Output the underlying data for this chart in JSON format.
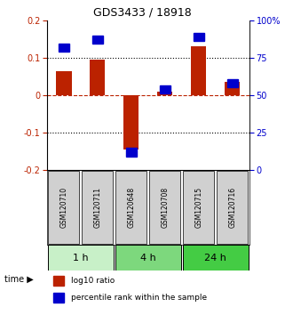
{
  "title": "GDS3433 / 18918",
  "samples": [
    "GSM120710",
    "GSM120711",
    "GSM120648",
    "GSM120708",
    "GSM120715",
    "GSM120716"
  ],
  "log10_ratio": [
    0.065,
    0.095,
    -0.145,
    0.01,
    0.13,
    0.035
  ],
  "percentile_rank": [
    82,
    87,
    12,
    54,
    89,
    58
  ],
  "time_groups": [
    {
      "label": "1 h",
      "start": 0,
      "end": 2,
      "color": "#c8f0c8"
    },
    {
      "label": "4 h",
      "start": 2,
      "end": 4,
      "color": "#7dd87d"
    },
    {
      "label": "24 h",
      "start": 4,
      "end": 6,
      "color": "#44cc44"
    }
  ],
  "red_color": "#bb2200",
  "blue_color": "#0000cc",
  "bar_width": 0.45,
  "blue_marker_size": 0.022,
  "ylim_left": [
    -0.2,
    0.2
  ],
  "ylim_right": [
    0,
    100
  ],
  "yticks_left": [
    -0.2,
    -0.1,
    0.0,
    0.1,
    0.2
  ],
  "yticks_right": [
    0,
    25,
    50,
    75,
    100
  ],
  "sample_box_color": "#d0d0d0",
  "legend_red_label": "log10 ratio",
  "legend_blue_label": "percentile rank within the sample"
}
